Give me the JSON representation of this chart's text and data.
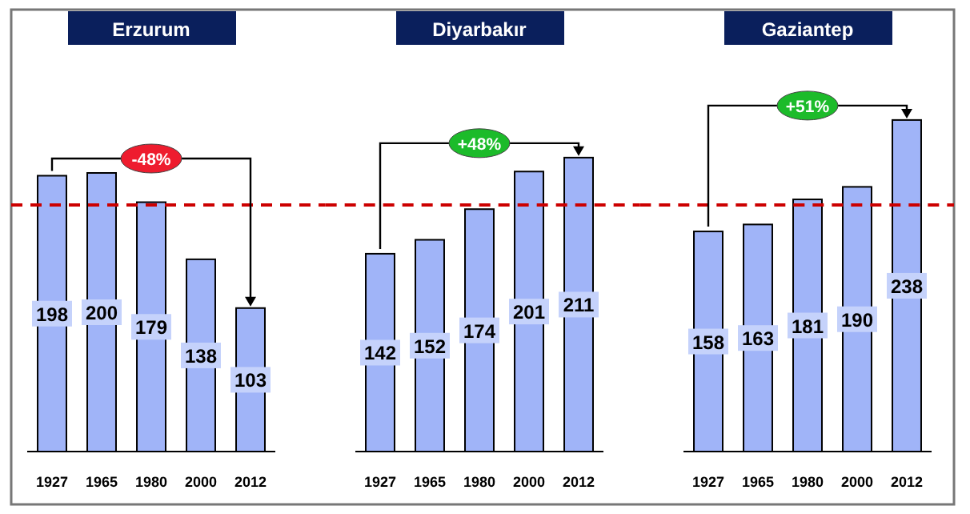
{
  "chart_data": [
    {
      "type": "bar",
      "title": "Erzurum",
      "categories": [
        "1927",
        "1965",
        "1980",
        "2000",
        "2012"
      ],
      "values": [
        198,
        200,
        179,
        138,
        103
      ],
      "color": "#a0b4f8",
      "data_labels": true,
      "ref_lines": [
        {
          "axis": "y",
          "value": 177,
          "color": "#cc0000",
          "line_style": "dashed"
        }
      ],
      "annotations": [
        "-48%"
      ]
    },
    {
      "type": "bar",
      "title": "Diyarbakır",
      "categories": [
        "1927",
        "1965",
        "1980",
        "2000",
        "2012"
      ],
      "values": [
        142,
        152,
        174,
        201,
        211
      ],
      "color": "#a0b4f8",
      "data_labels": true,
      "ref_lines": [
        {
          "axis": "y",
          "value": 177,
          "color": "#cc0000",
          "line_style": "dashed"
        }
      ],
      "annotations": [
        "+48%"
      ]
    },
    {
      "type": "bar",
      "title": "Gaziantep",
      "categories": [
        "1927",
        "1965",
        "1980",
        "2000",
        "2012"
      ],
      "values": [
        158,
        163,
        181,
        190,
        238
      ],
      "color": "#a0b4f8",
      "data_labels": true,
      "ref_lines": [
        {
          "axis": "y",
          "value": 177,
          "color": "#cc0000",
          "line_style": "dashed"
        }
      ],
      "annotations": [
        "+51%"
      ]
    }
  ]
}
